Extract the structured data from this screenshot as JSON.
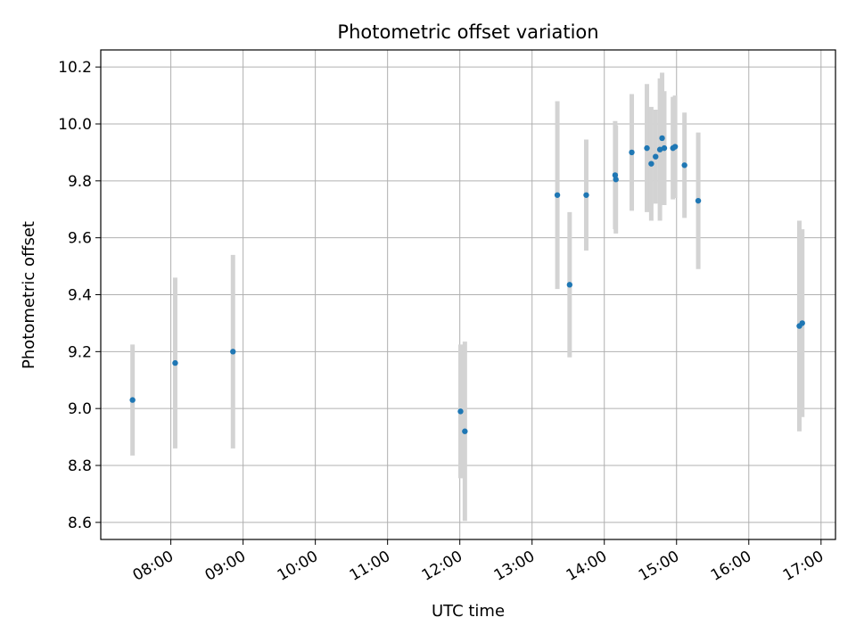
{
  "chart_data": {
    "type": "scatter",
    "title": "Photometric offset variation",
    "xlabel": "UTC time",
    "ylabel": "Photometric offset",
    "x_tick_labels": [
      "08:00",
      "09:00",
      "10:00",
      "11:00",
      "12:00",
      "13:00",
      "14:00",
      "15:00",
      "16:00",
      "17:00"
    ],
    "x_ticks_hours": [
      8,
      9,
      10,
      11,
      12,
      13,
      14,
      15,
      16,
      17
    ],
    "y_ticks": [
      8.6,
      8.8,
      9.0,
      9.2,
      9.4,
      9.6,
      9.8,
      10.0,
      10.2
    ],
    "xlim_hours": [
      7.03,
      17.2
    ],
    "ylim": [
      8.54,
      10.26
    ],
    "grid": true,
    "point_color": "#1f77b4",
    "errorbar_color": "#d3d3d3",
    "points": [
      {
        "x": 7.47,
        "y": 9.03,
        "err": 0.195
      },
      {
        "x": 8.06,
        "y": 9.16,
        "err": 0.3
      },
      {
        "x": 8.86,
        "y": 9.2,
        "err": 0.34
      },
      {
        "x": 12.01,
        "y": 8.99,
        "err": 0.235
      },
      {
        "x": 12.07,
        "y": 8.92,
        "err": 0.315
      },
      {
        "x": 13.35,
        "y": 9.75,
        "err": 0.33
      },
      {
        "x": 13.52,
        "y": 9.435,
        "err": 0.255
      },
      {
        "x": 13.75,
        "y": 9.75,
        "err": 0.195
      },
      {
        "x": 14.15,
        "y": 9.82,
        "err": 0.19
      },
      {
        "x": 14.16,
        "y": 9.805,
        "err": 0.19
      },
      {
        "x": 14.38,
        "y": 9.9,
        "err": 0.205
      },
      {
        "x": 14.59,
        "y": 9.915,
        "err": 0.225
      },
      {
        "x": 14.65,
        "y": 9.86,
        "err": 0.2
      },
      {
        "x": 14.71,
        "y": 9.885,
        "err": 0.165
      },
      {
        "x": 14.77,
        "y": 9.91,
        "err": 0.25
      },
      {
        "x": 14.8,
        "y": 9.95,
        "err": 0.23
      },
      {
        "x": 14.83,
        "y": 9.915,
        "err": 0.2
      },
      {
        "x": 14.95,
        "y": 9.915,
        "err": 0.18
      },
      {
        "x": 14.98,
        "y": 9.92,
        "err": 0.18
      },
      {
        "x": 15.11,
        "y": 9.855,
        "err": 0.185
      },
      {
        "x": 15.3,
        "y": 9.73,
        "err": 0.24
      },
      {
        "x": 16.7,
        "y": 9.29,
        "err": 0.37
      },
      {
        "x": 16.74,
        "y": 9.3,
        "err": 0.33
      }
    ]
  }
}
